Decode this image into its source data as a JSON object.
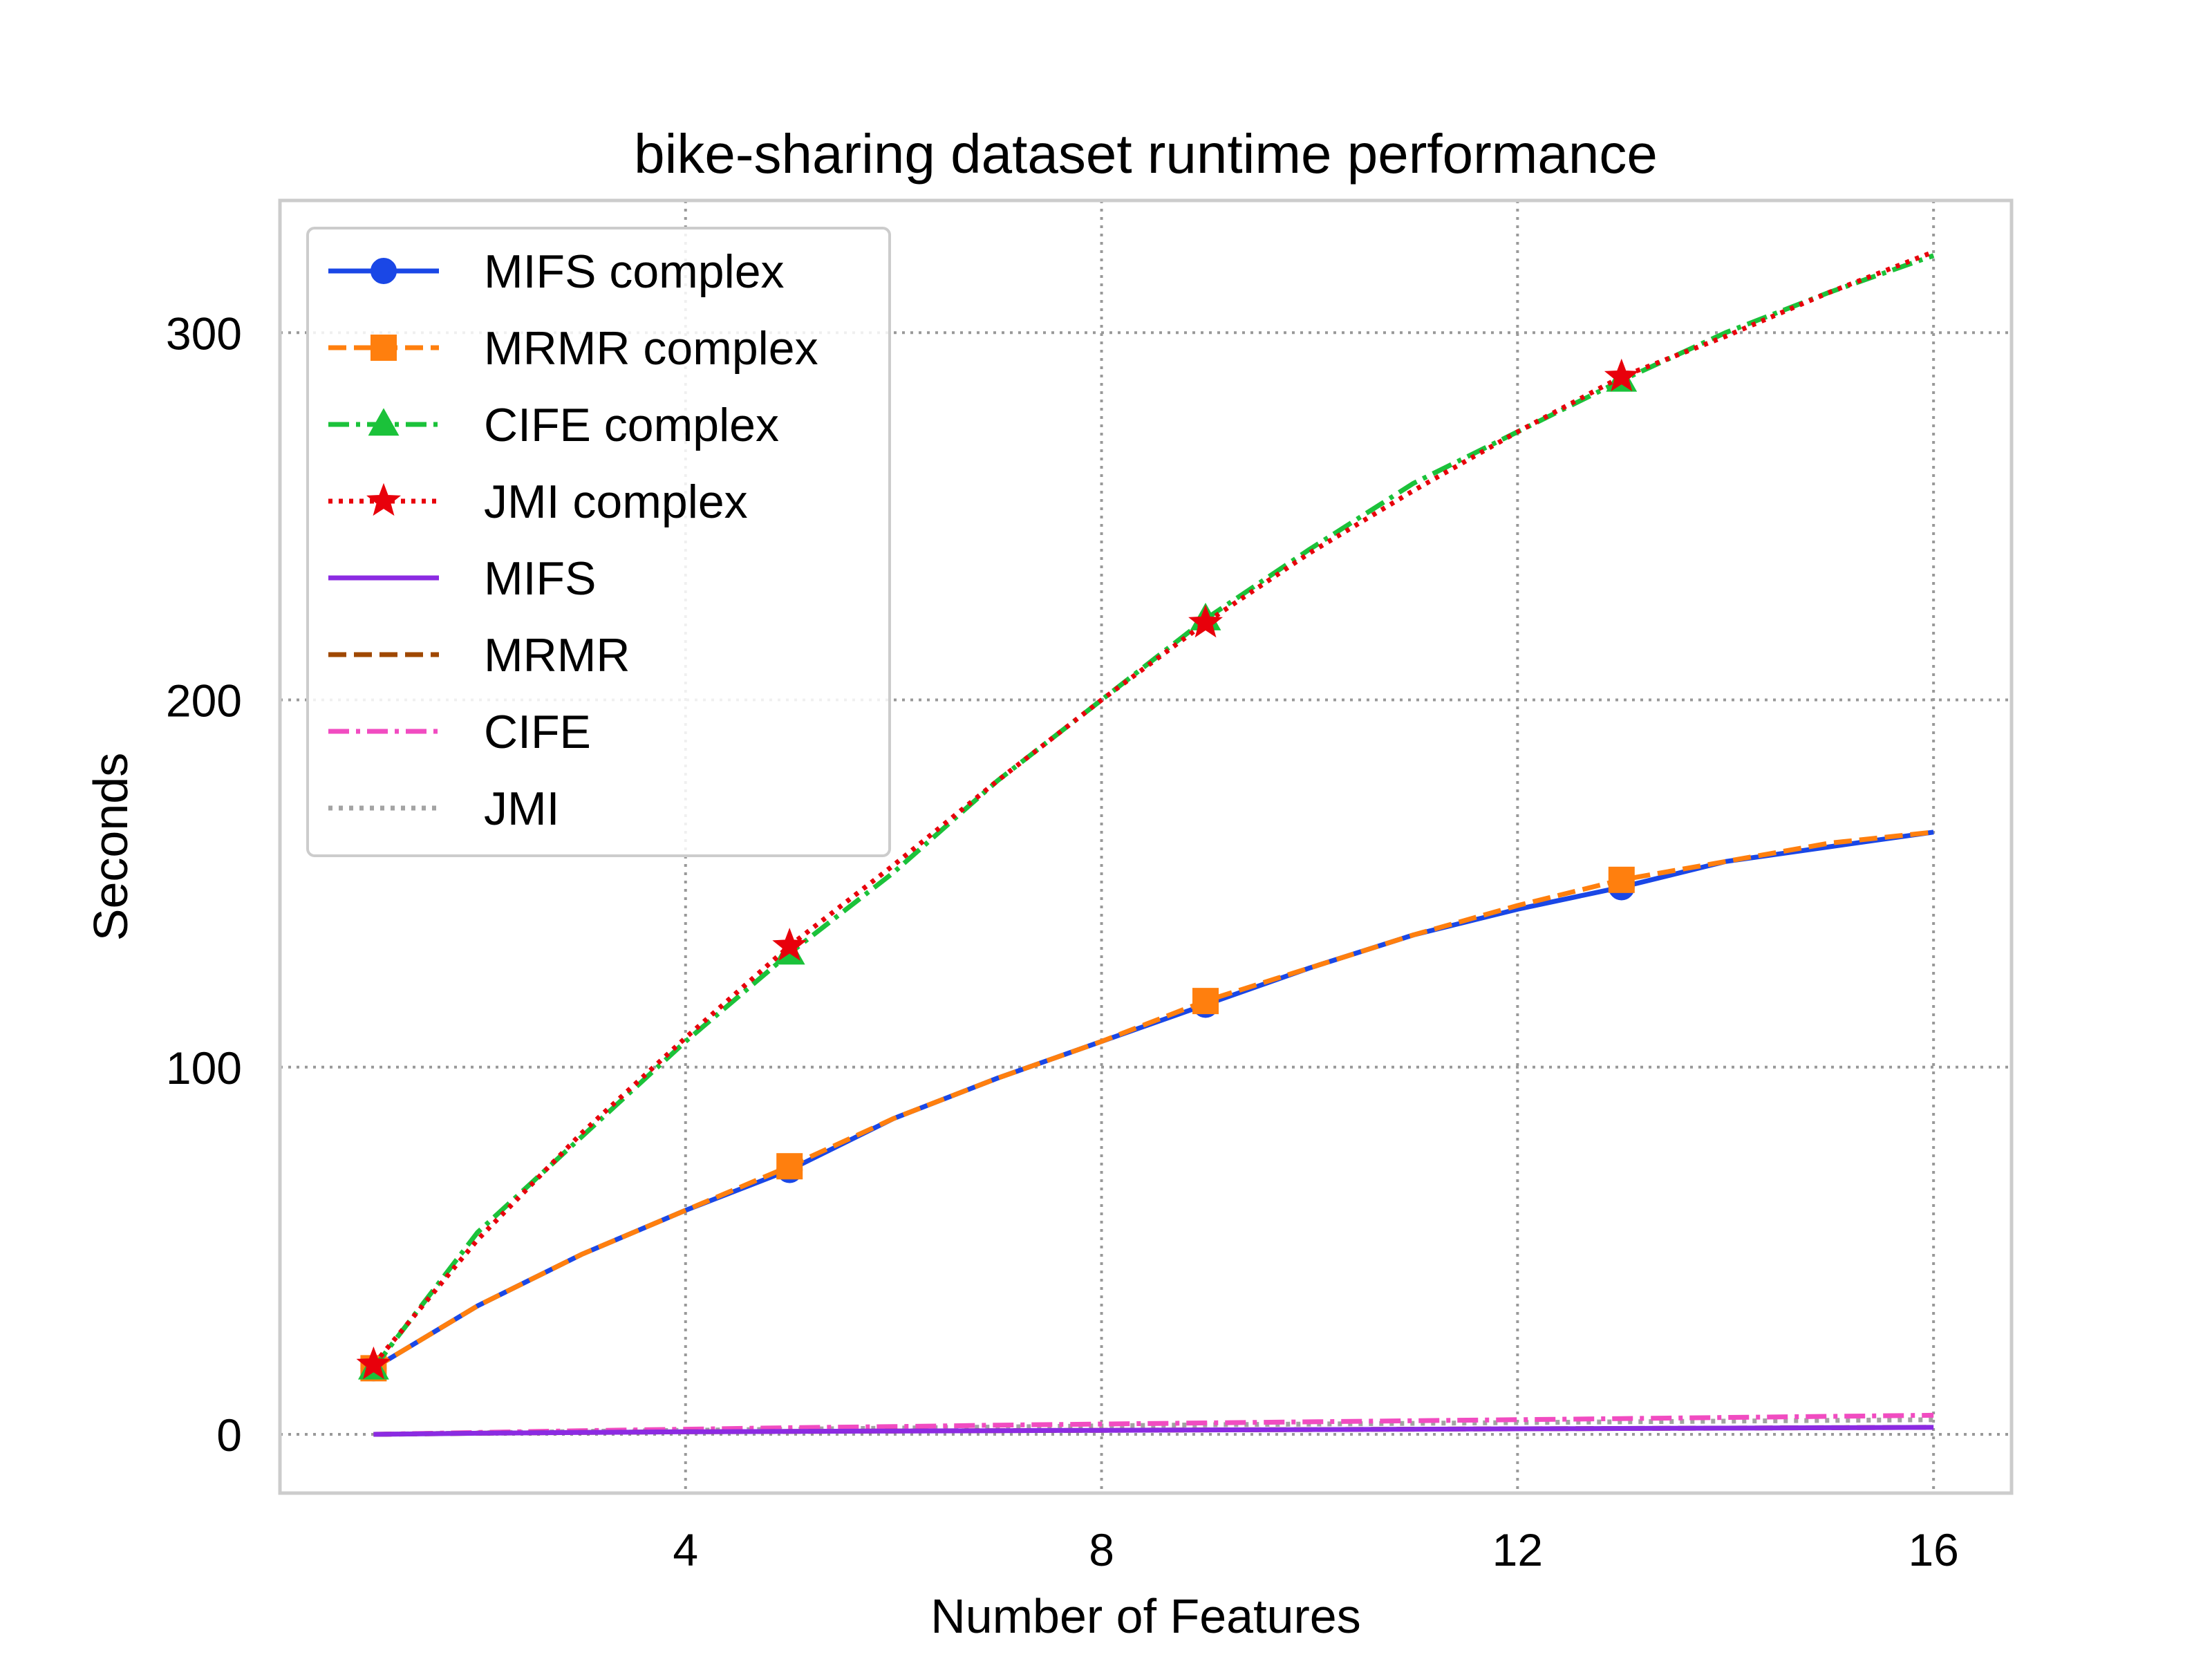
{
  "chart_data": {
    "type": "line",
    "title": "bike-sharing dataset runtime performance",
    "xlabel": "Number of Features",
    "ylabel": "Seconds",
    "xlim": [
      0.1,
      16.75
    ],
    "ylim": [
      -16,
      336
    ],
    "xticks": [
      4,
      8,
      12,
      16
    ],
    "yticks": [
      0,
      100,
      200,
      300
    ],
    "grid": true,
    "legend_position": "top-left",
    "x": [
      1,
      2,
      3,
      4,
      5,
      6,
      7,
      8,
      9,
      10,
      11,
      12,
      13,
      14,
      15,
      16
    ],
    "series": [
      {
        "name": "MIFS complex",
        "color": "#1a47e6",
        "line_style": "solid",
        "marker": "circle",
        "marker_every": 4,
        "values": [
          18,
          35,
          49,
          61,
          72,
          86,
          97,
          107,
          117,
          127,
          136,
          143,
          149,
          156,
          160,
          164
        ]
      },
      {
        "name": "MRMR complex",
        "color": "#ff7f0e",
        "line_style": "dashed",
        "marker": "square",
        "marker_every": 4,
        "values": [
          18,
          35,
          49,
          61,
          73,
          86,
          97,
          107,
          118,
          127,
          136,
          144,
          151,
          156,
          161,
          164
        ]
      },
      {
        "name": "CIFE complex",
        "color": "#1bc23a",
        "line_style": "dashdot",
        "marker": "triangle",
        "marker_every": 4,
        "values": [
          18,
          55,
          81,
          107,
          131,
          153,
          178,
          200,
          222,
          241,
          259,
          273,
          287,
          300,
          311,
          321
        ]
      },
      {
        "name": "JMI complex",
        "color": "#e8000b",
        "line_style": "dotted",
        "marker": "star",
        "marker_every": 4,
        "values": [
          19,
          53,
          82,
          108,
          133,
          155,
          178,
          200,
          221,
          240,
          257,
          273,
          288,
          299,
          311,
          322
        ]
      },
      {
        "name": "MIFS",
        "color": "#8b2be2",
        "line_style": "solid",
        "marker": "none",
        "values": [
          0,
          0.3,
          0.5,
          0.7,
          0.8,
          0.9,
          1.0,
          1.1,
          1.2,
          1.3,
          1.4,
          1.5,
          1.6,
          1.7,
          1.8,
          1.9
        ]
      },
      {
        "name": "MRMR",
        "color": "#9f4800",
        "line_style": "dashed",
        "marker": "none",
        "values": [
          0,
          0.3,
          0.5,
          0.7,
          0.8,
          0.9,
          1.0,
          1.1,
          1.2,
          1.3,
          1.4,
          1.5,
          1.6,
          1.7,
          1.8,
          1.9
        ]
      },
      {
        "name": "CIFE",
        "color": "#f14cc1",
        "line_style": "dashdot",
        "marker": "none",
        "values": [
          0,
          0.5,
          1.0,
          1.4,
          1.8,
          2.1,
          2.5,
          2.8,
          3.1,
          3.4,
          3.7,
          4.0,
          4.3,
          4.6,
          4.9,
          5.2
        ]
      },
      {
        "name": "JMI",
        "color": "#a3a3a3",
        "line_style": "dotted",
        "marker": "none",
        "values": [
          0,
          0.4,
          0.8,
          1.1,
          1.4,
          1.7,
          2.0,
          2.3,
          2.6,
          2.8,
          3.0,
          3.2,
          3.4,
          3.6,
          3.8,
          4.0
        ]
      }
    ]
  }
}
